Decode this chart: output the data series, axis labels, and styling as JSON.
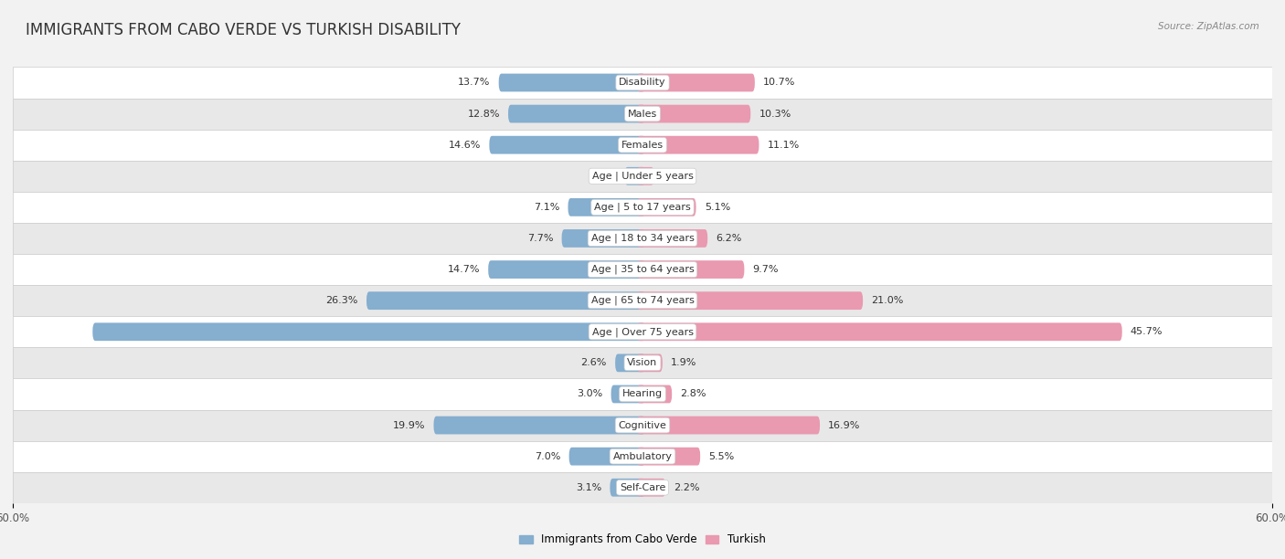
{
  "title": "IMMIGRANTS FROM CABO VERDE VS TURKISH DISABILITY",
  "source": "Source: ZipAtlas.com",
  "categories": [
    "Disability",
    "Males",
    "Females",
    "Age | Under 5 years",
    "Age | 5 to 17 years",
    "Age | 18 to 34 years",
    "Age | 35 to 64 years",
    "Age | 65 to 74 years",
    "Age | Over 75 years",
    "Vision",
    "Hearing",
    "Cognitive",
    "Ambulatory",
    "Self-Care"
  ],
  "left_values": [
    13.7,
    12.8,
    14.6,
    1.7,
    7.1,
    7.7,
    14.7,
    26.3,
    52.4,
    2.6,
    3.0,
    19.9,
    7.0,
    3.1
  ],
  "right_values": [
    10.7,
    10.3,
    11.1,
    1.1,
    5.1,
    6.2,
    9.7,
    21.0,
    45.7,
    1.9,
    2.8,
    16.9,
    5.5,
    2.2
  ],
  "left_color": "#85AECF",
  "right_color": "#E999B0",
  "left_label": "Immigrants from Cabo Verde",
  "right_label": "Turkish",
  "xlim": 60.0,
  "bar_height": 0.58,
  "background_color": "#f2f2f2",
  "row_bg_light": "#ffffff",
  "row_bg_dark": "#e8e8e8",
  "title_fontsize": 12,
  "label_fontsize": 8.5,
  "value_fontsize": 8,
  "cat_label_fontsize": 8
}
